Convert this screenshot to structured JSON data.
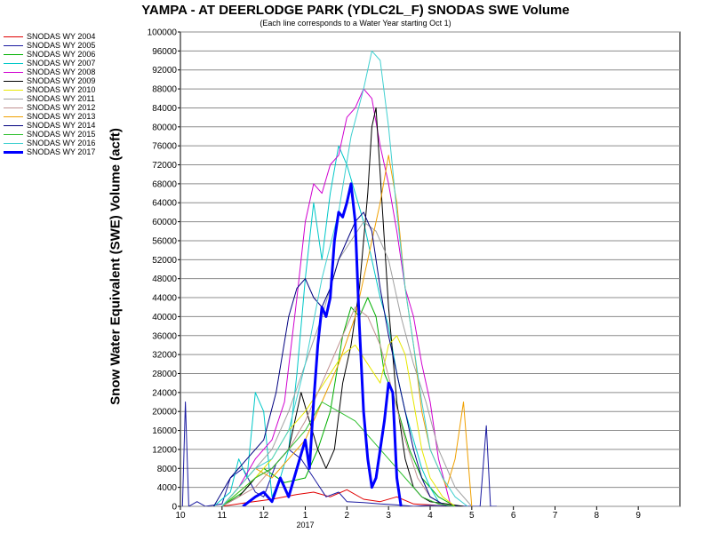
{
  "chart_data": {
    "type": "line",
    "title": "YAMPA - AT DEERLODGE PARK (YDLC2L_F) SNODAS SWE Volume",
    "subtitle": "(Each line corresponds to a Water Year starting Oct 1)",
    "ylabel": "Snow Water Equivalent (SWE) Volume (acft)",
    "xlabel": "",
    "ylim": [
      0,
      100000
    ],
    "yticks": [
      0,
      4000,
      8000,
      12000,
      16000,
      20000,
      24000,
      28000,
      32000,
      36000,
      40000,
      44000,
      48000,
      52000,
      56000,
      60000,
      64000,
      68000,
      72000,
      76000,
      80000,
      84000,
      88000,
      92000,
      96000,
      100000
    ],
    "xlim": [
      10,
      22
    ],
    "xticks": [
      {
        "value": 10,
        "label": "10"
      },
      {
        "value": 11,
        "label": "11"
      },
      {
        "value": 12,
        "label": "12"
      },
      {
        "value": 13,
        "label": "1"
      },
      {
        "value": 14,
        "label": "2"
      },
      {
        "value": 15,
        "label": "3"
      },
      {
        "value": 16,
        "label": "4"
      },
      {
        "value": 17,
        "label": "5"
      },
      {
        "value": 18,
        "label": "6"
      },
      {
        "value": 19,
        "label": "7"
      },
      {
        "value": 20,
        "label": "8"
      },
      {
        "value": 21,
        "label": "9"
      }
    ],
    "year_label": {
      "value": 13,
      "label": "2017"
    },
    "grid": true,
    "legend_position": "left",
    "series": [
      {
        "name": "SNODAS WY 2004",
        "color": "#e00000",
        "width": 1,
        "x": [
          11.0,
          11.6,
          12.2,
          12.8,
          13.2,
          13.6,
          14.0,
          14.4,
          14.8,
          15.2,
          15.6,
          16.0,
          16.5
        ],
        "y": [
          0,
          800,
          1500,
          2500,
          3000,
          2000,
          3500,
          1500,
          1000,
          2000,
          500,
          300,
          0
        ]
      },
      {
        "name": "SNODAS WY 2005",
        "color": "#1a1aa0",
        "width": 1,
        "x": [
          10.05,
          10.12,
          10.2,
          10.4,
          10.6,
          11.0,
          11.2,
          11.5,
          11.8,
          12.0,
          12.3,
          12.6,
          12.9,
          13.2,
          13.5,
          13.8,
          14.0,
          14.4,
          14.8,
          15.2,
          15.6,
          16.0,
          16.5,
          17.0,
          17.2,
          17.35,
          17.45,
          17.6
        ],
        "y": [
          0,
          22000,
          0,
          1000,
          0,
          500,
          6000,
          8000,
          3000,
          2000,
          9000,
          12000,
          10000,
          6000,
          2000,
          3000,
          1000,
          800,
          500,
          300,
          0,
          200,
          100,
          0,
          0,
          17000,
          0,
          0
        ]
      },
      {
        "name": "SNODAS WY 2006",
        "color": "#00b000",
        "width": 1,
        "x": [
          11.0,
          11.5,
          12.0,
          12.5,
          13.0,
          13.3,
          13.6,
          13.9,
          14.1,
          14.3,
          14.5,
          14.7,
          14.9,
          15.1,
          15.3,
          15.5,
          15.8,
          16.2,
          16.6
        ],
        "y": [
          0,
          3000,
          8000,
          5000,
          6000,
          12000,
          20000,
          36000,
          42000,
          40000,
          44000,
          40000,
          28000,
          24000,
          18000,
          12000,
          6000,
          2000,
          0
        ]
      },
      {
        "name": "SNODAS WY 2007",
        "color": "#00c8c8",
        "width": 1,
        "x": [
          10.8,
          11.2,
          11.4,
          11.6,
          11.8,
          12.0,
          12.2,
          12.4,
          12.6,
          12.8,
          13.0,
          13.2,
          13.4,
          13.6,
          13.8,
          14.0,
          14.2,
          14.4,
          14.6,
          14.8,
          15.0,
          15.2,
          15.4,
          15.6,
          15.8,
          16.0,
          16.2,
          16.4
        ],
        "y": [
          0,
          3000,
          10000,
          6000,
          24000,
          20000,
          2000,
          6000,
          12000,
          28000,
          48000,
          64000,
          52000,
          66000,
          76000,
          72000,
          66000,
          60000,
          52000,
          44000,
          38000,
          28000,
          20000,
          14000,
          8000,
          4000,
          1000,
          0
        ]
      },
      {
        "name": "SNODAS WY 2008",
        "color": "#d000d0",
        "width": 1,
        "x": [
          11.0,
          11.4,
          11.8,
          12.2,
          12.5,
          12.8,
          13.0,
          13.2,
          13.4,
          13.6,
          13.8,
          14.0,
          14.2,
          14.4,
          14.6,
          14.8,
          15.0,
          15.2,
          15.4,
          15.6,
          15.8,
          16.0,
          16.2,
          16.5
        ],
        "y": [
          0,
          4000,
          10000,
          14000,
          22000,
          44000,
          60000,
          68000,
          66000,
          72000,
          74000,
          82000,
          84000,
          88000,
          86000,
          76000,
          68000,
          58000,
          46000,
          40000,
          30000,
          22000,
          10000,
          0
        ]
      },
      {
        "name": "SNODAS WY 2009",
        "color": "#000000",
        "width": 1,
        "x": [
          11.0,
          11.4,
          11.8,
          12.2,
          12.6,
          12.9,
          13.1,
          13.3,
          13.5,
          13.7,
          13.9,
          14.1,
          14.3,
          14.5,
          14.6,
          14.7,
          14.8,
          15.0,
          15.2,
          15.4,
          15.6,
          15.8,
          16.0,
          16.4,
          16.8
        ],
        "y": [
          0,
          2000,
          6000,
          8000,
          12000,
          24000,
          18000,
          12000,
          8000,
          12000,
          26000,
          34000,
          46000,
          66000,
          80000,
          84000,
          70000,
          42000,
          22000,
          10000,
          4000,
          2000,
          1000,
          500,
          0
        ]
      },
      {
        "name": "SNODAS WY 2010",
        "color": "#e8e800",
        "width": 1,
        "x": [
          11.0,
          11.4,
          11.8,
          12.2,
          12.6,
          13.0,
          13.3,
          13.6,
          13.9,
          14.2,
          14.5,
          14.8,
          15.0,
          15.2,
          15.4,
          15.6,
          15.8,
          16.0,
          16.3,
          16.6
        ],
        "y": [
          0,
          3000,
          6000,
          10000,
          16000,
          20000,
          24000,
          28000,
          32000,
          34000,
          30000,
          26000,
          34000,
          36000,
          32000,
          22000,
          12000,
          6000,
          2000,
          0
        ]
      },
      {
        "name": "SNODAS WY 2011",
        "color": "#a0a0a0",
        "width": 1,
        "x": [
          11.0,
          11.4,
          11.8,
          12.2,
          12.6,
          13.0,
          13.4,
          13.8,
          14.1,
          14.4,
          14.7,
          15.0,
          15.3,
          15.6,
          15.9,
          16.2,
          16.6,
          17.0
        ],
        "y": [
          0,
          4000,
          8000,
          12000,
          20000,
          30000,
          40000,
          52000,
          56000,
          60000,
          58000,
          52000,
          40000,
          30000,
          22000,
          12000,
          4000,
          0
        ]
      },
      {
        "name": "SNODAS WY 2012",
        "color": "#c09090",
        "width": 1,
        "x": [
          11.0,
          11.4,
          11.8,
          12.2,
          12.6,
          13.0,
          13.3,
          13.6,
          13.9,
          14.2,
          14.5,
          14.8,
          15.1,
          15.4,
          15.7,
          16.0,
          16.4
        ],
        "y": [
          0,
          2000,
          4000,
          8000,
          12000,
          18000,
          24000,
          30000,
          36000,
          42000,
          40000,
          34000,
          24000,
          14000,
          6000,
          2000,
          0
        ]
      },
      {
        "name": "SNODAS WY 2013",
        "color": "#f0a000",
        "width": 1,
        "x": [
          11.0,
          11.4,
          11.8,
          12.2,
          12.6,
          13.0,
          13.4,
          13.8,
          14.2,
          14.5,
          14.8,
          15.0,
          15.2,
          15.4,
          15.6,
          15.8,
          16.0,
          16.2,
          16.4,
          16.6,
          16.8,
          17.0
        ],
        "y": [
          0,
          4000,
          8000,
          6000,
          10000,
          14000,
          22000,
          30000,
          40000,
          52000,
          64000,
          74000,
          64000,
          46000,
          34000,
          20000,
          12000,
          8000,
          4000,
          10000,
          22000,
          0
        ]
      },
      {
        "name": "SNODAS WY 2014",
        "color": "#000080",
        "width": 1,
        "x": [
          10.8,
          11.2,
          11.6,
          12.0,
          12.3,
          12.6,
          12.8,
          13.0,
          13.2,
          13.4,
          13.6,
          13.8,
          14.0,
          14.2,
          14.4,
          14.6,
          14.8,
          15.0,
          15.2,
          15.4,
          15.6,
          15.8,
          16.0,
          16.4
        ],
        "y": [
          0,
          6000,
          10000,
          14000,
          24000,
          40000,
          46000,
          48000,
          44000,
          42000,
          46000,
          52000,
          56000,
          60000,
          62000,
          58000,
          46000,
          36000,
          28000,
          20000,
          12000,
          6000,
          2000,
          0
        ]
      },
      {
        "name": "SNODAS WY 2015",
        "color": "#30c030",
        "width": 1,
        "x": [
          11.0,
          11.4,
          11.8,
          12.2,
          12.6,
          13.0,
          13.4,
          13.8,
          14.2,
          14.6,
          15.0,
          15.4,
          15.8,
          16.2,
          16.6
        ],
        "y": [
          0,
          3000,
          6000,
          8000,
          12000,
          16000,
          22000,
          20000,
          18000,
          14000,
          10000,
          6000,
          2000,
          500,
          0
        ]
      },
      {
        "name": "SNODAS WY 2016",
        "color": "#40d0d0",
        "width": 1,
        "x": [
          11.0,
          11.4,
          11.8,
          12.2,
          12.6,
          13.0,
          13.4,
          13.8,
          14.1,
          14.4,
          14.6,
          14.8,
          15.0,
          15.2,
          15.4,
          15.6,
          15.8,
          16.0,
          16.3,
          16.6,
          16.9
        ],
        "y": [
          0,
          4000,
          8000,
          10000,
          16000,
          30000,
          48000,
          62000,
          78000,
          88000,
          96000,
          94000,
          80000,
          62000,
          46000,
          34000,
          22000,
          12000,
          6000,
          2000,
          0
        ]
      },
      {
        "name": "SNODAS WY 2017",
        "color": "#0000ff",
        "width": 3,
        "x": [
          11.5,
          11.8,
          12.0,
          12.2,
          12.4,
          12.6,
          12.8,
          13.0,
          13.1,
          13.2,
          13.3,
          13.4,
          13.5,
          13.6,
          13.7,
          13.8,
          13.9,
          14.0,
          14.1,
          14.2,
          14.3,
          14.4,
          14.5,
          14.6,
          14.7,
          14.8,
          14.9,
          15.0,
          15.1,
          15.2,
          15.3
        ],
        "y": [
          0,
          2000,
          3000,
          1000,
          6000,
          2000,
          8000,
          14000,
          8000,
          22000,
          34000,
          42000,
          40000,
          44000,
          56000,
          62000,
          61000,
          64000,
          68000,
          60000,
          38000,
          20000,
          10000,
          4000,
          6000,
          12000,
          18000,
          26000,
          24000,
          6000,
          0
        ]
      }
    ]
  }
}
